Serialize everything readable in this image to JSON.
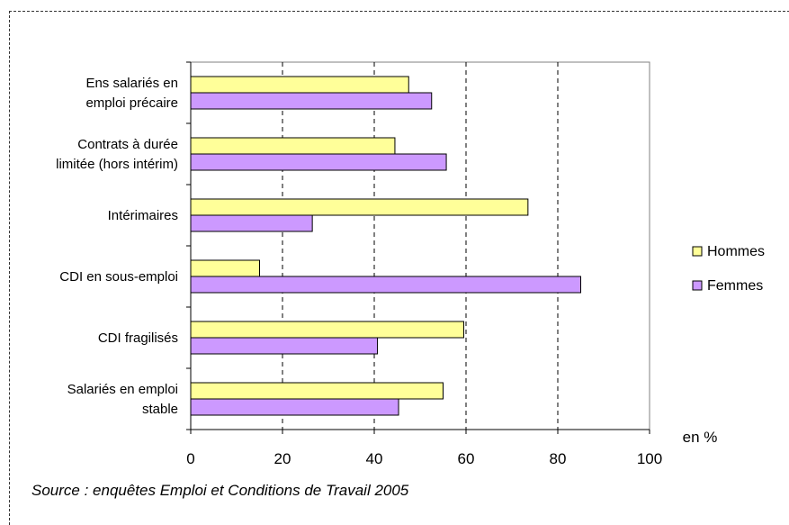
{
  "chart_data": {
    "type": "bar",
    "orientation": "horizontal",
    "categories": [
      [
        "Ens salariés en",
        "emploi précaire"
      ],
      [
        "Contrats à durée",
        "limitée (hors intérim)"
      ],
      [
        "Intérimaires"
      ],
      [
        "CDI en sous-emploi"
      ],
      [
        "CDI fragilisés"
      ],
      [
        "Salariés en emploi",
        "stable"
      ]
    ],
    "series": [
      {
        "name": "Hommes",
        "color": "#ffff99",
        "values": [
          47.5,
          44.5,
          73.5,
          15,
          59.5,
          55
        ]
      },
      {
        "name": "Femmes",
        "color": "#cc99ff",
        "values": [
          52.5,
          55.7,
          26.5,
          85,
          40.7,
          45.3
        ]
      }
    ],
    "xlim": [
      0,
      100
    ],
    "xticks": [
      0,
      20,
      40,
      60,
      80,
      100
    ],
    "xunit": "en %",
    "grid": "vertical dashed",
    "legend_position": "right"
  },
  "source": "Source : enquêtes Emploi et Conditions de Travail 2005"
}
